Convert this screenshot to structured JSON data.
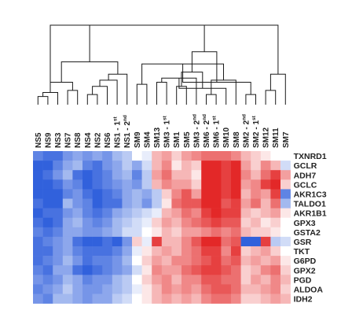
{
  "chart_data": {
    "type": "heatmap",
    "title": "",
    "colors": {
      "high": "#e01010",
      "mid": "#ffffff",
      "low": "#1a4fd8"
    },
    "value_range": [
      -1,
      1
    ],
    "columns": [
      {
        "label": "NS5",
        "sup": "",
        "suffix": ""
      },
      {
        "label": "NS9",
        "sup": "",
        "suffix": ""
      },
      {
        "label": "NS3",
        "sup": "",
        "suffix": ""
      },
      {
        "label": "NS7",
        "sup": "",
        "suffix": ""
      },
      {
        "label": "NS8",
        "sup": "",
        "suffix": ""
      },
      {
        "label": "NS4",
        "sup": "",
        "suffix": ""
      },
      {
        "label": "NS2",
        "sup": "",
        "suffix": ""
      },
      {
        "label": "NS6",
        "sup": "",
        "suffix": ""
      },
      {
        "label": "NS1 - 1",
        "sup": "st",
        "suffix": ""
      },
      {
        "label": "NS1 - 2",
        "sup": "nd",
        "suffix": ""
      },
      {
        "label": "SM9",
        "sup": "",
        "suffix": ""
      },
      {
        "label": "SM4",
        "sup": "",
        "suffix": ""
      },
      {
        "label": "SM13",
        "sup": "",
        "suffix": ""
      },
      {
        "label": "SM3 - 1",
        "sup": "st",
        "suffix": ""
      },
      {
        "label": "SM1",
        "sup": "",
        "suffix": ""
      },
      {
        "label": "SM5",
        "sup": "",
        "suffix": ""
      },
      {
        "label": "SM3 - 2",
        "sup": "nd",
        "suffix": ""
      },
      {
        "label": "SM6 - 2",
        "sup": "nd",
        "suffix": ""
      },
      {
        "label": "SM6 - 1",
        "sup": "st",
        "suffix": ""
      },
      {
        "label": "SM10",
        "sup": "",
        "suffix": ""
      },
      {
        "label": "SM8",
        "sup": "",
        "suffix": ""
      },
      {
        "label": "SM2 - 2",
        "sup": "nd",
        "suffix": ""
      },
      {
        "label": "SM2 - 1",
        "sup": "st",
        "suffix": ""
      },
      {
        "label": "SM12",
        "sup": "",
        "suffix": ""
      },
      {
        "label": "SM11",
        "sup": "",
        "suffix": ""
      },
      {
        "label": "SM7",
        "sup": "",
        "suffix": ""
      }
    ],
    "rows": [
      "TXNRD1",
      "GCLR",
      "ADH7",
      "GCLC",
      "AKR1C3",
      "TALDO1",
      "AKR1B1",
      "GPX3",
      "GSTA2",
      "GSR",
      "TKT",
      "G6PD",
      "GPX2",
      "PGD",
      "ALDOA",
      "IDH2"
    ],
    "values": [
      [
        -0.7,
        -0.8,
        -0.8,
        -0.6,
        -0.5,
        -0.6,
        -0.5,
        -0.6,
        -0.4,
        -0.3,
        0.0,
        -0.1,
        0.3,
        0.4,
        0.2,
        0.4,
        0.5,
        0.6,
        0.6,
        0.6,
        0.5,
        0.3,
        0.2,
        0.1,
        0.0,
        0.0
      ],
      [
        -0.9,
        -0.9,
        -0.7,
        -0.5,
        -0.4,
        -0.7,
        -0.8,
        -0.6,
        -0.5,
        -0.3,
        -0.5,
        -0.2,
        0.3,
        0.5,
        0.1,
        0.3,
        0.2,
        0.9,
        0.9,
        0.8,
        0.9,
        0.4,
        0.2,
        0.5,
        0.3,
        -0.2
      ],
      [
        -0.9,
        -0.8,
        -0.6,
        -0.4,
        -0.8,
        -0.9,
        -0.8,
        -0.7,
        -0.5,
        -0.4,
        -0.7,
        -0.3,
        0.4,
        0.6,
        0.3,
        0.3,
        0.1,
        0.9,
        0.9,
        0.8,
        0.9,
        0.5,
        0.3,
        0.6,
        0.8,
        0.4
      ],
      [
        -0.9,
        -0.9,
        -0.8,
        -0.6,
        -0.7,
        -0.9,
        -0.8,
        -0.7,
        -0.6,
        -0.5,
        -0.6,
        -0.3,
        0.3,
        0.5,
        0.4,
        0.4,
        0.2,
        0.9,
        0.9,
        0.8,
        0.9,
        0.4,
        0.5,
        0.8,
        0.9,
        0.2
      ],
      [
        -0.9,
        -0.9,
        -0.9,
        -0.7,
        -0.6,
        -0.8,
        -0.9,
        -0.8,
        -0.7,
        -0.5,
        -0.4,
        -0.5,
        -0.3,
        0.2,
        0.5,
        0.7,
        0.4,
        0.9,
        0.9,
        0.8,
        0.9,
        0.3,
        0.5,
        0.4,
        0.8,
        -0.7
      ],
      [
        -0.8,
        -0.9,
        -0.9,
        -0.4,
        -0.6,
        -0.7,
        -0.9,
        -0.8,
        -0.8,
        -0.5,
        -0.4,
        -0.6,
        -0.3,
        0.1,
        0.6,
        0.7,
        0.7,
        0.9,
        0.9,
        0.7,
        0.8,
        0.4,
        0.6,
        0.3,
        0.6,
        -0.4
      ],
      [
        -0.9,
        -0.8,
        -0.8,
        -0.6,
        -0.5,
        -0.7,
        -0.8,
        -0.7,
        -0.5,
        -0.4,
        -0.3,
        -0.2,
        -0.1,
        0.3,
        0.4,
        0.6,
        0.5,
        0.8,
        0.9,
        0.8,
        0.8,
        0.3,
        0.2,
        0.3,
        0.4,
        0.1
      ],
      [
        -0.8,
        -0.9,
        -0.8,
        -0.5,
        -0.4,
        -0.6,
        -0.7,
        -0.6,
        -0.4,
        -0.3,
        -0.2,
        -0.1,
        0.2,
        0.4,
        0.3,
        0.5,
        0.6,
        0.7,
        0.8,
        0.7,
        0.7,
        0.2,
        0.3,
        0.1,
        0.2,
        0.0
      ],
      [
        -0.7,
        -0.8,
        -0.7,
        -0.5,
        -0.5,
        -0.6,
        -0.6,
        -0.5,
        -0.4,
        -0.2,
        -0.2,
        0.0,
        0.1,
        0.3,
        0.2,
        0.4,
        0.4,
        0.5,
        0.6,
        0.5,
        0.6,
        0.3,
        0.2,
        0.2,
        0.1,
        0.0
      ],
      [
        -0.8,
        -0.7,
        -0.6,
        -0.5,
        -0.8,
        -0.9,
        -0.9,
        -0.8,
        -0.9,
        -0.6,
        0.2,
        -0.1,
        0.8,
        0.3,
        0.3,
        0.5,
        0.7,
        0.9,
        0.9,
        0.6,
        0.7,
        -0.9,
        -0.9,
        0.8,
        -0.3,
        -0.2
      ],
      [
        -0.8,
        -0.8,
        -0.6,
        -0.5,
        -0.7,
        -0.8,
        -0.8,
        -0.8,
        -0.7,
        -0.5,
        -0.1,
        0.1,
        0.3,
        0.4,
        0.3,
        0.5,
        0.6,
        0.8,
        0.8,
        0.5,
        0.8,
        0.2,
        0.3,
        0.4,
        0.2,
        0.0
      ],
      [
        -0.8,
        -0.7,
        -0.6,
        -0.4,
        -0.6,
        -0.8,
        -0.7,
        -0.7,
        -0.6,
        -0.4,
        0.0,
        0.2,
        0.4,
        0.3,
        0.5,
        0.5,
        0.6,
        0.7,
        0.8,
        0.6,
        0.7,
        0.3,
        0.4,
        0.3,
        0.4,
        0.1
      ],
      [
        -0.7,
        -0.8,
        -0.5,
        -0.5,
        -0.8,
        -0.9,
        -0.8,
        -0.7,
        -0.6,
        -0.5,
        -0.2,
        0.1,
        0.5,
        0.4,
        0.4,
        0.6,
        0.7,
        0.8,
        0.8,
        0.7,
        0.6,
        0.2,
        0.3,
        0.5,
        0.6,
        0.2
      ],
      [
        -0.6,
        -0.7,
        -0.6,
        -0.4,
        -0.5,
        -0.7,
        -0.6,
        -0.6,
        -0.4,
        -0.3,
        0.0,
        0.2,
        0.4,
        0.5,
        0.3,
        0.5,
        0.5,
        0.7,
        0.7,
        0.6,
        0.6,
        0.2,
        0.4,
        0.3,
        0.5,
        0.3
      ],
      [
        -0.7,
        -0.6,
        -0.5,
        -0.3,
        -0.5,
        -0.6,
        -0.6,
        -0.5,
        -0.4,
        -0.3,
        -0.1,
        0.1,
        0.3,
        0.5,
        0.4,
        0.5,
        0.4,
        0.6,
        0.7,
        0.7,
        0.6,
        0.3,
        0.3,
        0.4,
        0.5,
        0.2
      ],
      [
        -0.6,
        -0.7,
        -0.4,
        -0.4,
        -0.5,
        -0.6,
        -0.5,
        -0.5,
        -0.3,
        -0.2,
        0.0,
        0.1,
        0.3,
        0.4,
        0.3,
        0.4,
        0.3,
        0.5,
        0.6,
        0.6,
        0.5,
        0.2,
        0.2,
        0.3,
        0.4,
        0.3
      ]
    ],
    "dendrogram": {
      "note": "column dendrogram merges given as pairs of node ids (0-25 leaves, 26+ internal), heights in distance units",
      "merges": [
        [
          0,
          1,
          0.08
        ],
        [
          2,
          26,
          0.12
        ],
        [
          3,
          4,
          0.14
        ],
        [
          27,
          28,
          0.22
        ],
        [
          5,
          6,
          0.1
        ],
        [
          30,
          7,
          0.18
        ],
        [
          31,
          8,
          0.24
        ],
        [
          32,
          9,
          0.3
        ],
        [
          29,
          33,
          0.42
        ],
        [
          10,
          11,
          0.2
        ],
        [
          12,
          13,
          0.22
        ],
        [
          14,
          15,
          0.18
        ],
        [
          36,
          16,
          0.26
        ],
        [
          17,
          18,
          0.1
        ],
        [
          38,
          19,
          0.16
        ],
        [
          39,
          20,
          0.24
        ],
        [
          37,
          40,
          0.32
        ],
        [
          35,
          41,
          0.4
        ],
        [
          21,
          22,
          0.1
        ],
        [
          23,
          24,
          0.14
        ],
        [
          43,
          44,
          0.22
        ],
        [
          45,
          25,
          0.3
        ],
        [
          42,
          46,
          0.52
        ],
        [
          34,
          47,
          0.78
        ],
        [
          48,
          27,
          0.78
        ]
      ]
    }
  }
}
